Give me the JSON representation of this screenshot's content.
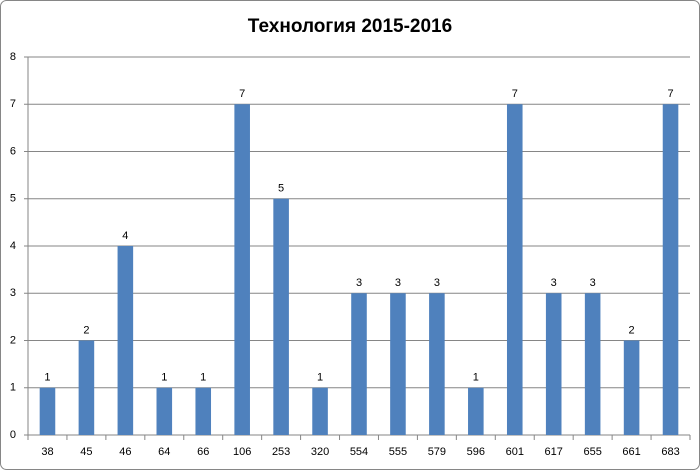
{
  "chart_data": {
    "type": "bar",
    "title": "Технология 2015-2016",
    "categories": [
      "38",
      "45",
      "46",
      "64",
      "66",
      "106",
      "253",
      "320",
      "554",
      "555",
      "579",
      "596",
      "601",
      "617",
      "655",
      "661",
      "683"
    ],
    "values": [
      1,
      2,
      4,
      1,
      1,
      7,
      5,
      1,
      3,
      3,
      3,
      1,
      7,
      3,
      3,
      2,
      7
    ],
    "color": "#4f81bd",
    "ylim": [
      0,
      8
    ],
    "yticks": [
      0,
      1,
      2,
      3,
      4,
      5,
      6,
      7,
      8
    ],
    "grid": true
  }
}
